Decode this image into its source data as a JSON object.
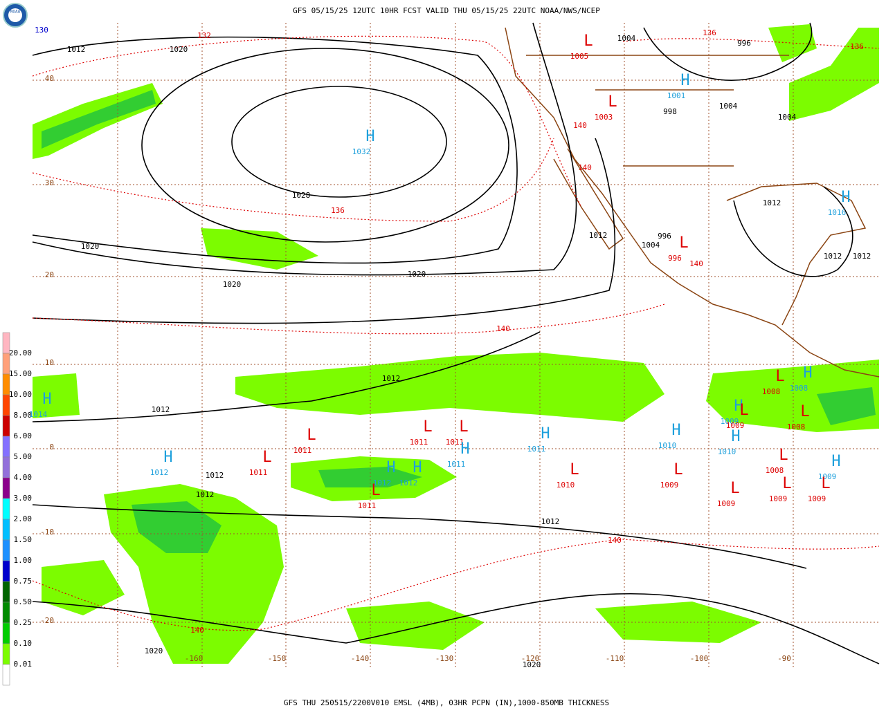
{
  "header": "GFS 05/15/25 12UTC 10HR FCST VALID THU 05/15/25 22UTC NOAA/NWS/NCEP",
  "footer": "GFS THU 250515/2200V010 EMSL (4MB), 03HR PCPN (IN),1000-850MB THICKNESS",
  "logo": "NOAA",
  "legend": [
    {
      "label": "20.00",
      "color": "#ffb6c1"
    },
    {
      "label": "15.00",
      "color": "#ffa07a"
    },
    {
      "label": "10.00",
      "color": "#ff8c00"
    },
    {
      "label": "8.00",
      "color": "#ff4500"
    },
    {
      "label": "6.00",
      "color": "#cc0000"
    },
    {
      "label": "5.00",
      "color": "#8470ff"
    },
    {
      "label": "4.00",
      "color": "#9370db"
    },
    {
      "label": "3.00",
      "color": "#8b008b"
    },
    {
      "label": "2.00",
      "color": "#00ffff"
    },
    {
      "label": "1.50",
      "color": "#00bfff"
    },
    {
      "label": "1.00",
      "color": "#1e90ff"
    },
    {
      "label": "0.75",
      "color": "#0000cd"
    },
    {
      "label": "0.50",
      "color": "#006400"
    },
    {
      "label": "0.25",
      "color": "#008b00"
    },
    {
      "label": "0.10",
      "color": "#00cd00"
    },
    {
      "label": "0.01",
      "color": "#7cfc00"
    }
  ],
  "lat_labels": [
    "40",
    "30",
    "20",
    "10",
    "0",
    "-10",
    "-20"
  ],
  "lon_labels": [
    "-160",
    "-150",
    "-140",
    "-130",
    "-120",
    "-110",
    "-100",
    "-90"
  ],
  "centers": [
    {
      "symbol": "H",
      "value": "1032"
    },
    {
      "symbol": "L",
      "value": "1005"
    },
    {
      "symbol": "H",
      "value": "1001"
    },
    {
      "symbol": "L",
      "value": "1003"
    },
    {
      "symbol": "H",
      "value": "1016"
    },
    {
      "symbol": "L",
      "value": "996"
    },
    {
      "symbol": "H",
      "value": "1014"
    },
    {
      "symbol": "H",
      "value": "1012"
    },
    {
      "symbol": "L",
      "value": "1011"
    },
    {
      "symbol": "L",
      "value": "1011"
    },
    {
      "symbol": "L",
      "value": "1011"
    },
    {
      "symbol": "L",
      "value": "1011"
    },
    {
      "symbol": "H",
      "value": "1011"
    },
    {
      "symbol": "H",
      "value": "1012"
    },
    {
      "symbol": "H",
      "value": "1012"
    },
    {
      "symbol": "L",
      "value": "1011"
    },
    {
      "symbol": "H",
      "value": "1011"
    },
    {
      "symbol": "L",
      "value": "1010"
    },
    {
      "symbol": "H",
      "value": "1010"
    },
    {
      "symbol": "L",
      "value": "1009"
    },
    {
      "symbol": "H",
      "value": "1010"
    },
    {
      "symbol": "L",
      "value": "1009"
    },
    {
      "symbol": "H",
      "value": "1009"
    },
    {
      "symbol": "L",
      "value": "1009"
    },
    {
      "symbol": "L",
      "value": "1008"
    },
    {
      "symbol": "H",
      "value": "1008"
    },
    {
      "symbol": "L",
      "value": "1008"
    },
    {
      "symbol": "L",
      "value": "1008"
    },
    {
      "symbol": "H",
      "value": "1009"
    },
    {
      "symbol": "L",
      "value": "1009"
    },
    {
      "symbol": "L",
      "value": "1009"
    }
  ],
  "isobar_labels": [
    "1012",
    "1020",
    "1004",
    "996",
    "1004",
    "1004",
    "998",
    "1028",
    "1020",
    "1020",
    "1020",
    "1012",
    "1004",
    "996",
    "1012",
    "1012",
    "1012",
    "1012",
    "1012",
    "1012",
    "1012",
    "1012",
    "1020",
    "1020"
  ],
  "thickness_labels": [
    "132",
    "136",
    "136",
    "140",
    "140",
    "140",
    "140",
    "140",
    "140",
    "136",
    "130"
  ]
}
